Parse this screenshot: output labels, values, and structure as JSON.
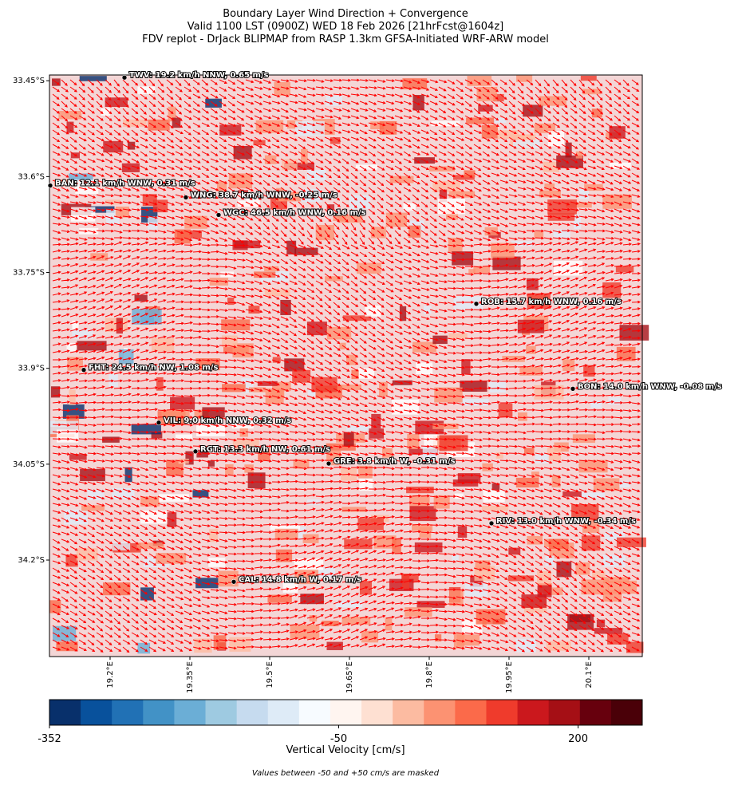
{
  "map": {
    "title": [
      "Boundary Layer Wind Direction + Convergence",
      "Valid 1100 LST (0900Z) WED 18 Feb 2026 [21hrFcst@1604z]",
      "FDV replot - DrJack BLIPMAP from RASP 1.3km GFSA-Initiated WRF-ARW model"
    ],
    "xlim": [
      19.086,
      20.2005
    ],
    "ylim": [
      -34.351,
      -33.441
    ],
    "xticks": [
      {
        "value": 19.2,
        "label": "19.2°E"
      },
      {
        "value": 19.35,
        "label": "19.35°E"
      },
      {
        "value": 19.5,
        "label": "19.5°E"
      },
      {
        "value": 19.65,
        "label": "19.65°E"
      },
      {
        "value": 19.8,
        "label": "19.8°E"
      },
      {
        "value": 19.95,
        "label": "19.95°E"
      },
      {
        "value": 20.1,
        "label": "20.1°E"
      }
    ],
    "yticks": [
      {
        "value": -33.45,
        "label": "33.45°S"
      },
      {
        "value": -33.6,
        "label": "33.6°S"
      },
      {
        "value": -33.75,
        "label": "33.75°S"
      },
      {
        "value": -33.9,
        "label": "33.9°S"
      },
      {
        "value": -34.05,
        "label": "34.05°S"
      },
      {
        "value": -34.2,
        "label": "34.2°S"
      }
    ],
    "stations": [
      {
        "label": "TWV: 19.2 km/h NNW, 0.65 m/s",
        "lon": 19.227,
        "lat": -33.445
      },
      {
        "label": "BAN: 12.1 km/h WNW, 0.31 m/s",
        "lon": 19.0875,
        "lat": -33.614
      },
      {
        "label": "WNG: 38.7 km/h WNW, -0.25 m/s",
        "lon": 19.3425,
        "lat": -33.6325
      },
      {
        "label": "WGC: 46.5 km/h WNW, 0.16 m/s",
        "lon": 19.404,
        "lat": -33.66
      },
      {
        "label": "ROB: 15.7 km/h WNW, 0.16 m/s",
        "lon": 19.8885,
        "lat": -33.799
      },
      {
        "label": "FHT: 24.5 km/h NW, 1.08 m/s",
        "lon": 19.1505,
        "lat": -33.9025
      },
      {
        "label": "BON: 14.0 km/h WNW, -0.08 m/s",
        "lon": 20.07,
        "lat": -33.932
      },
      {
        "label": "VIL: 9.0 km/h NNW, 0.32 m/s",
        "lon": 19.2915,
        "lat": -33.985
      },
      {
        "label": "RGT: 13.3 km/h NW, 0.61 m/s",
        "lon": 19.3605,
        "lat": -34.03
      },
      {
        "label": "GRE: 3.8 km/h W, -0.31 m/s",
        "lon": 19.611,
        "lat": -34.049
      },
      {
        "label": "RIV: 13.0 km/h WNW, -0.34 m/s",
        "lon": 19.917,
        "lat": -34.1425
      },
      {
        "label": "CAL: 14.8 km/h W, 0.17 m/s",
        "lon": 19.4325,
        "lat": -34.234
      }
    ],
    "colorbar": {
      "label": "Vertical Velocity [cm/s]",
      "clim": [
        -352,
        267
      ],
      "ticks": [
        -352,
        -50,
        200
      ],
      "colors": [
        "#08306b",
        "#08519c",
        "#2171b5",
        "#4292c6",
        "#6baed6",
        "#9ecae1",
        "#c6dbef",
        "#deebf7",
        "#f7fbff",
        "#fff5f0",
        "#fee0d2",
        "#fcbba1",
        "#fc9272",
        "#fb6a4a",
        "#ef3b2c",
        "#cb181d",
        "#a50f15",
        "#67000d",
        "#4a0008"
      ]
    },
    "footnote": "Values between -50 and +50 cm/s are masked"
  }
}
